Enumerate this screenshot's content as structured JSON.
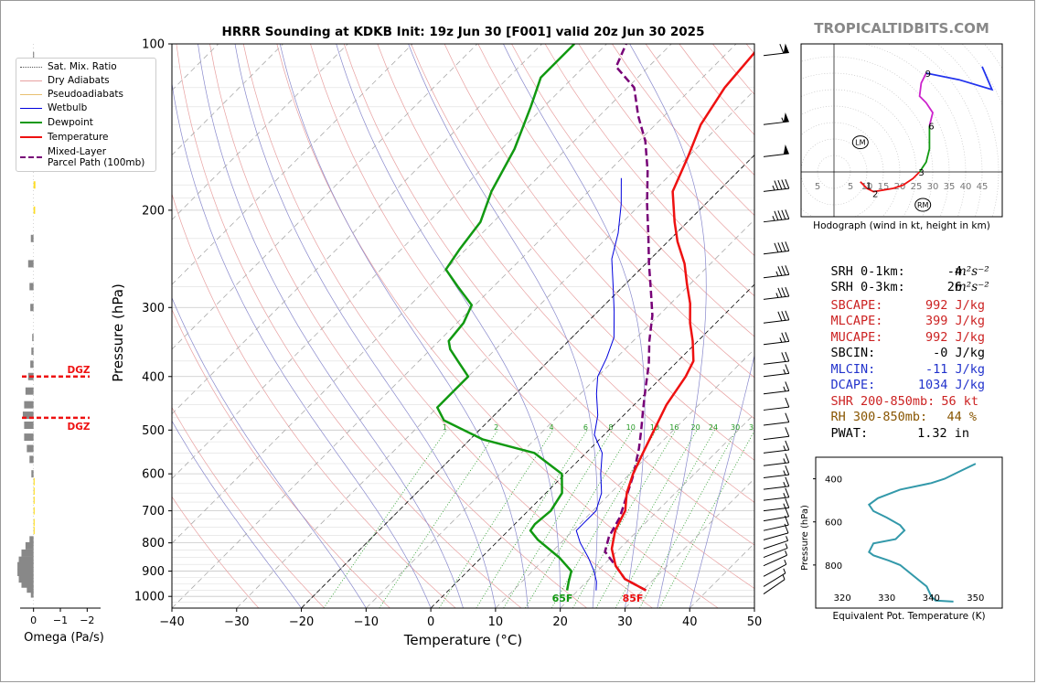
{
  "header": {
    "title": "HRRR Sounding at KDKB Init: 19z Jun 30 [F001] valid 20z Jun 30 2025",
    "brand": "TROPICALTIDBITS.COM"
  },
  "colors": {
    "temperature": "#ee1111",
    "dewpoint": "#119911",
    "wetbulb": "#0000dd",
    "parcel": "#770077",
    "dry_adiabat": "#e8a0a0",
    "moist_adiabat": "#8888cc",
    "mixing_ratio": "#229922",
    "theta_e": "#3399aa",
    "red_stat": "#cc2222",
    "blue_stat": "#2233cc",
    "brown_stat": "#885500"
  },
  "skewt": {
    "ylabel": "Pressure (hPa)",
    "xlabel": "Temperature (°C)",
    "pressure_ticks": [
      "100",
      "200",
      "300",
      "400",
      "500",
      "600",
      "700",
      "800",
      "900",
      "1000"
    ],
    "temp_ticks": [
      "−40",
      "−30",
      "−20",
      "−10",
      "0",
      "10",
      "20",
      "30",
      "40",
      "50"
    ],
    "mixing_ratio_labels": [
      "1",
      "2",
      "4",
      "6",
      "8",
      "10",
      "13",
      "16",
      "20",
      "24",
      "30",
      "36"
    ],
    "surface_dewpoint_label": "65F",
    "surface_temp_label": "85F",
    "dgz_label": "DGZ"
  },
  "legend": {
    "items": [
      {
        "label": "Sat. Mix. Ratio"
      },
      {
        "label": "Dry Adiabats"
      },
      {
        "label": "Pseudoadiabats"
      },
      {
        "label": "Wetbulb"
      },
      {
        "label": "Dewpoint"
      },
      {
        "label": "Temperature"
      },
      {
        "label": "Mixed-Layer"
      },
      {
        "label": "Parcel Path (100mb)"
      }
    ]
  },
  "omega": {
    "xlabel": "Omega (Pa/s)",
    "ticks": [
      "0",
      "−1",
      "−2"
    ]
  },
  "hodograph": {
    "caption": "Hodograph (wind in kt, height in km)",
    "ring_labels": [
      "5",
      "10",
      "15",
      "20",
      "25",
      "30",
      "35",
      "40",
      "45"
    ],
    "neg_label": "5",
    "height_labels": [
      "1",
      "2",
      "3",
      "6",
      "9"
    ],
    "lm_label": "LM",
    "rm_label": "RM"
  },
  "stats": [
    {
      "label": "SRH 0-1km:",
      "value": "-4",
      "unit": "m²s⁻²",
      "color": "#000000"
    },
    {
      "label": "SRH 0-3km:",
      "value": "26",
      "unit": "m²s⁻²",
      "color": "#000000"
    },
    {
      "label": "SBCAPE:",
      "value": "992 J/kg",
      "unit": "",
      "color": "#cc2222"
    },
    {
      "label": "MLCAPE:",
      "value": "399 J/kg",
      "unit": "",
      "color": "#cc2222"
    },
    {
      "label": "MUCAPE:",
      "value": "992 J/kg",
      "unit": "",
      "color": "#cc2222"
    },
    {
      "label": "SBCIN:",
      "value": "-0 J/kg",
      "unit": "",
      "color": "#000000"
    },
    {
      "label": "MLCIN:",
      "value": "-11 J/kg",
      "unit": "",
      "color": "#2233cc"
    },
    {
      "label": "DCAPE:",
      "value": "1034 J/kg",
      "unit": "",
      "color": "#2233cc"
    },
    {
      "label": "SHR 200-850mb:",
      "value": "56 kt",
      "unit": "",
      "color": "#cc2222"
    },
    {
      "label": "RH 300-850mb:",
      "value": "44 %",
      "unit": "",
      "color": "#885500"
    },
    {
      "label": "PWAT:",
      "value": "1.32 in",
      "unit": "",
      "color": "#000000"
    }
  ],
  "theta_e_panel": {
    "ylabel": "Pressure (hPa)",
    "xlabel": "Equivalent Pot. Temperature (K)",
    "xticks": [
      "320",
      "330",
      "340",
      "350"
    ],
    "yticks": [
      "400",
      "600",
      "800"
    ]
  },
  "chart_data": [
    {
      "type": "line",
      "title": "HRRR Sounding at KDKB Init: 19z Jun 30 [F001] valid 20z Jun 30 2025",
      "xlabel": "Temperature (°C)",
      "ylabel": "Pressure (hPa)",
      "xlim": [
        -40,
        50
      ],
      "ylim": [
        1050,
        100
      ],
      "y_scale": "log",
      "skew": true,
      "series": [
        {
          "name": "Temperature",
          "points": [
            [
              30.5,
              975
            ],
            [
              25.5,
              930
            ],
            [
              22,
              880
            ],
            [
              18.8,
              820
            ],
            [
              16.5,
              760
            ],
            [
              15,
              700
            ],
            [
              12.5,
              650
            ],
            [
              10.5,
              600
            ],
            [
              8.8,
              550
            ],
            [
              7,
              500
            ],
            [
              5,
              450
            ],
            [
              3.6,
              400
            ],
            [
              2.4,
              375
            ],
            [
              -0.8,
              345
            ],
            [
              -4,
              320
            ],
            [
              -7,
              295
            ],
            [
              -10.5,
              272
            ],
            [
              -14,
              250
            ],
            [
              -18.5,
              228
            ],
            [
              -22,
              210
            ],
            [
              -27,
              185
            ],
            [
              -30,
              160
            ],
            [
              -33,
              140
            ],
            [
              -35,
              120
            ],
            [
              -36,
              100
            ]
          ]
        },
        {
          "name": "Dewpoint",
          "points": [
            [
              18.3,
              975
            ],
            [
              17.2,
              940
            ],
            [
              16,
              900
            ],
            [
              12,
              850
            ],
            [
              6,
              790
            ],
            [
              3.4,
              760
            ],
            [
              3.1,
              740
            ],
            [
              3.5,
              700
            ],
            [
              2.5,
              650
            ],
            [
              -0.5,
              600
            ],
            [
              -8,
              550
            ],
            [
              -18,
              520
            ],
            [
              -27,
              480
            ],
            [
              -30,
              455
            ],
            [
              -30,
              430
            ],
            [
              -30,
              400
            ],
            [
              -33.5,
              378
            ],
            [
              -37,
              357
            ],
            [
              -38.5,
              345
            ],
            [
              -39,
              320
            ],
            [
              -40.5,
              297
            ],
            [
              -45.5,
              275
            ],
            [
              -50,
              256
            ],
            [
              -51,
              235
            ],
            [
              -52,
              210
            ],
            [
              -55,
              185
            ],
            [
              -58,
              155
            ],
            [
              -62,
              130
            ],
            [
              -65,
              115
            ],
            [
              -65,
              100
            ]
          ]
        },
        {
          "name": "Wetbulb",
          "points": [
            [
              22.8,
              975
            ],
            [
              21.5,
              940
            ],
            [
              19.5,
              900
            ],
            [
              16.5,
              850
            ],
            [
              13,
              800
            ],
            [
              10.5,
              760
            ],
            [
              10.5,
              740
            ],
            [
              10.5,
              700
            ],
            [
              8.6,
              650
            ],
            [
              5.5,
              600
            ],
            [
              2.5,
              550
            ],
            [
              -1.5,
              510
            ],
            [
              -4,
              470
            ],
            [
              -7.5,
              430
            ],
            [
              -10,
              400
            ],
            [
              -11.5,
              370
            ],
            [
              -13.5,
              340
            ],
            [
              -17.5,
              305
            ],
            [
              -21.5,
              275
            ],
            [
              -26,
              245
            ],
            [
              -29,
              220
            ],
            [
              -33,
              195
            ],
            [
              -37,
              175
            ]
          ]
        },
        {
          "name": "Mixed-Layer Parcel Path (100mb)",
          "points": [
            [
              30.5,
              975
            ],
            [
              25.5,
              930
            ],
            [
              22,
              880
            ],
            [
              18.2,
              830
            ],
            [
              16.5,
              780
            ],
            [
              15.2,
              720
            ],
            [
              13,
              660
            ],
            [
              10.6,
              600
            ],
            [
              7.5,
              540
            ],
            [
              5,
              500
            ],
            [
              2.2,
              460
            ],
            [
              -0.8,
              420
            ],
            [
              -4,
              380
            ],
            [
              -7.5,
              345
            ],
            [
              -11,
              310
            ],
            [
              -15,
              280
            ],
            [
              -19.5,
              250
            ],
            [
              -24,
              222
            ],
            [
              -29,
              195
            ],
            [
              -34,
              170
            ],
            [
              -39,
              150
            ],
            [
              -44,
              135
            ],
            [
              -49,
              120
            ],
            [
              -55,
              110
            ],
            [
              -57,
              100
            ]
          ]
        }
      ]
    },
    {
      "type": "bar",
      "xlabel": "Omega (Pa/s)",
      "xlim": [
        0.5,
        -2.5
      ],
      "ylim": [
        1050,
        100
      ],
      "bars": [
        {
          "p": 990,
          "omega": 0.1
        },
        {
          "p": 970,
          "omega": 0.25
        },
        {
          "p": 950,
          "omega": 0.45
        },
        {
          "p": 930,
          "omega": 0.55
        },
        {
          "p": 905,
          "omega": 0.6
        },
        {
          "p": 880,
          "omega": 0.6
        },
        {
          "p": 860,
          "omega": 0.55
        },
        {
          "p": 835,
          "omega": 0.45
        },
        {
          "p": 810,
          "omega": 0.3
        },
        {
          "p": 790,
          "omega": 0.15
        },
        {
          "p": 760,
          "omega": -0.02
        },
        {
          "p": 735,
          "omega": -0.03
        },
        {
          "p": 700,
          "omega": -0.03
        },
        {
          "p": 670,
          "omega": -0.03
        },
        {
          "p": 645,
          "omega": -0.04
        },
        {
          "p": 620,
          "omega": -0.03
        },
        {
          "p": 600,
          "omega": 0.08
        },
        {
          "p": 565,
          "omega": 0.15
        },
        {
          "p": 540,
          "omega": 0.25
        },
        {
          "p": 515,
          "omega": 0.35
        },
        {
          "p": 490,
          "omega": 0.35
        },
        {
          "p": 470,
          "omega": 0.4
        },
        {
          "p": 450,
          "omega": 0.35
        },
        {
          "p": 425,
          "omega": 0.3
        },
        {
          "p": 400,
          "omega": 0.2
        },
        {
          "p": 380,
          "omega": 0.12
        },
        {
          "p": 360,
          "omega": 0.08
        },
        {
          "p": 340,
          "omega": 0.05
        },
        {
          "p": 300,
          "omega": 0.12
        },
        {
          "p": 275,
          "omega": 0.15
        },
        {
          "p": 250,
          "omega": 0.2
        },
        {
          "p": 225,
          "omega": 0.1
        },
        {
          "p": 200,
          "omega": -0.06
        },
        {
          "p": 180,
          "omega": -0.07
        },
        {
          "p": 160,
          "omega": -0.05
        },
        {
          "p": 140,
          "omega": -0.04
        },
        {
          "p": 120,
          "omega": -0.02
        },
        {
          "p": 105,
          "omega": 0.02
        }
      ],
      "dgz_pressures": [
        400,
        475
      ]
    },
    {
      "type": "line",
      "title": "Hodograph (wind in kt, height in km)",
      "xlim": [
        -10,
        50
      ],
      "ylim": [
        -15,
        38
      ],
      "unit": "kt",
      "series": [
        {
          "name": "0-3 km",
          "points": [
            [
              8,
              -3
            ],
            [
              10,
              -5
            ],
            [
              12,
              -6
            ],
            [
              15,
              -5.5
            ],
            [
              18,
              -5
            ],
            [
              21,
              -4
            ],
            [
              24,
              -2
            ],
            [
              26,
              0
            ]
          ]
        },
        {
          "name": "3-6 km",
          "points": [
            [
              26,
              0
            ],
            [
              28,
              3
            ],
            [
              29,
              7
            ],
            [
              29,
              11
            ],
            [
              29,
              14
            ]
          ]
        },
        {
          "name": "6-9 km",
          "points": [
            [
              29,
              14
            ],
            [
              30,
              18
            ],
            [
              28,
              21
            ],
            [
              26,
              23
            ],
            [
              26.5,
              27
            ],
            [
              28,
              30
            ]
          ]
        },
        {
          "name": "9-12 km",
          "points": [
            [
              28,
              30
            ],
            [
              38,
              28
            ],
            [
              48,
              25
            ],
            [
              45,
              32
            ]
          ]
        }
      ],
      "height_labels": [
        {
          "label": "1",
          "u": 10,
          "v": -4
        },
        {
          "label": "2",
          "u": 12,
          "v": -6.5
        },
        {
          "label": "3",
          "u": 26,
          "v": 0
        },
        {
          "label": "6",
          "u": 29,
          "v": 14
        },
        {
          "label": "9",
          "u": 28,
          "v": 30
        }
      ],
      "lm": [
        8,
        9
      ],
      "rm": [
        27,
        -10
      ]
    },
    {
      "type": "line",
      "title": "",
      "xlabel": "Equivalent Pot. Temperature (K)",
      "ylabel": "Pressure (hPa)",
      "xlim": [
        314,
        356
      ],
      "ylim": [
        1000,
        300
      ],
      "series": [
        {
          "name": "theta-e",
          "points": [
            [
              345,
              970
            ],
            [
              341,
              965
            ],
            [
              340,
              945
            ],
            [
              339,
              900
            ],
            [
              333,
              800
            ],
            [
              330.5,
              780
            ],
            [
              327,
              755
            ],
            [
              326,
              740
            ],
            [
              327,
              700
            ],
            [
              332,
              680
            ],
            [
              334,
              640
            ],
            [
              333,
              615
            ],
            [
              330,
              580
            ],
            [
              327,
              550
            ],
            [
              326,
              520
            ],
            [
              328,
              490
            ],
            [
              333,
              450
            ],
            [
              340,
              420
            ],
            [
              343,
              400
            ],
            [
              346,
              370
            ],
            [
              350,
              330
            ]
          ]
        }
      ]
    }
  ]
}
